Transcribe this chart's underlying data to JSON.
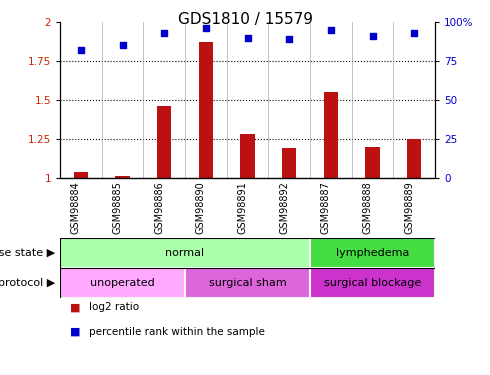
{
  "title": "GDS1810 / 15579",
  "samples": [
    "GSM98884",
    "GSM98885",
    "GSM98886",
    "GSM98890",
    "GSM98891",
    "GSM98892",
    "GSM98887",
    "GSM98888",
    "GSM98889"
  ],
  "log2_ratio": [
    1.04,
    1.01,
    1.46,
    1.87,
    1.28,
    1.19,
    1.55,
    1.2,
    1.25
  ],
  "percentile_rank": [
    82,
    85,
    93,
    96,
    90,
    89,
    95,
    91,
    93
  ],
  "ylim": [
    1.0,
    2.0
  ],
  "yticks_left": [
    1.0,
    1.25,
    1.5,
    1.75,
    2.0
  ],
  "yticks_left_labels": [
    "1",
    "1.25",
    "1.5",
    "1.75",
    "2"
  ],
  "yticks_right": [
    0,
    25,
    50,
    75,
    100
  ],
  "yticks_right_labels": [
    "0",
    "25",
    "50",
    "75",
    "100%"
  ],
  "bar_color": "#bb1111",
  "dot_color": "#0000cc",
  "bg_color": "#ffffff",
  "bar_width": 0.35,
  "disease_state_groups": [
    {
      "label": "normal",
      "start": 0,
      "end": 6,
      "color": "#aaffaa"
    },
    {
      "label": "lymphedema",
      "start": 6,
      "end": 9,
      "color": "#44dd44"
    }
  ],
  "protocol_groups": [
    {
      "label": "unoperated",
      "start": 0,
      "end": 3,
      "color": "#ffaaff"
    },
    {
      "label": "surgical sham",
      "start": 3,
      "end": 6,
      "color": "#dd66dd"
    },
    {
      "label": "surgical blockage",
      "start": 6,
      "end": 9,
      "color": "#cc33cc"
    }
  ],
  "left_label_color": "#cc2200",
  "right_label_color": "#0000cc",
  "title_fontsize": 11,
  "tick_fontsize": 7.5,
  "annot_fontsize": 8,
  "sample_fontsize": 7,
  "legend_fontsize": 7.5
}
